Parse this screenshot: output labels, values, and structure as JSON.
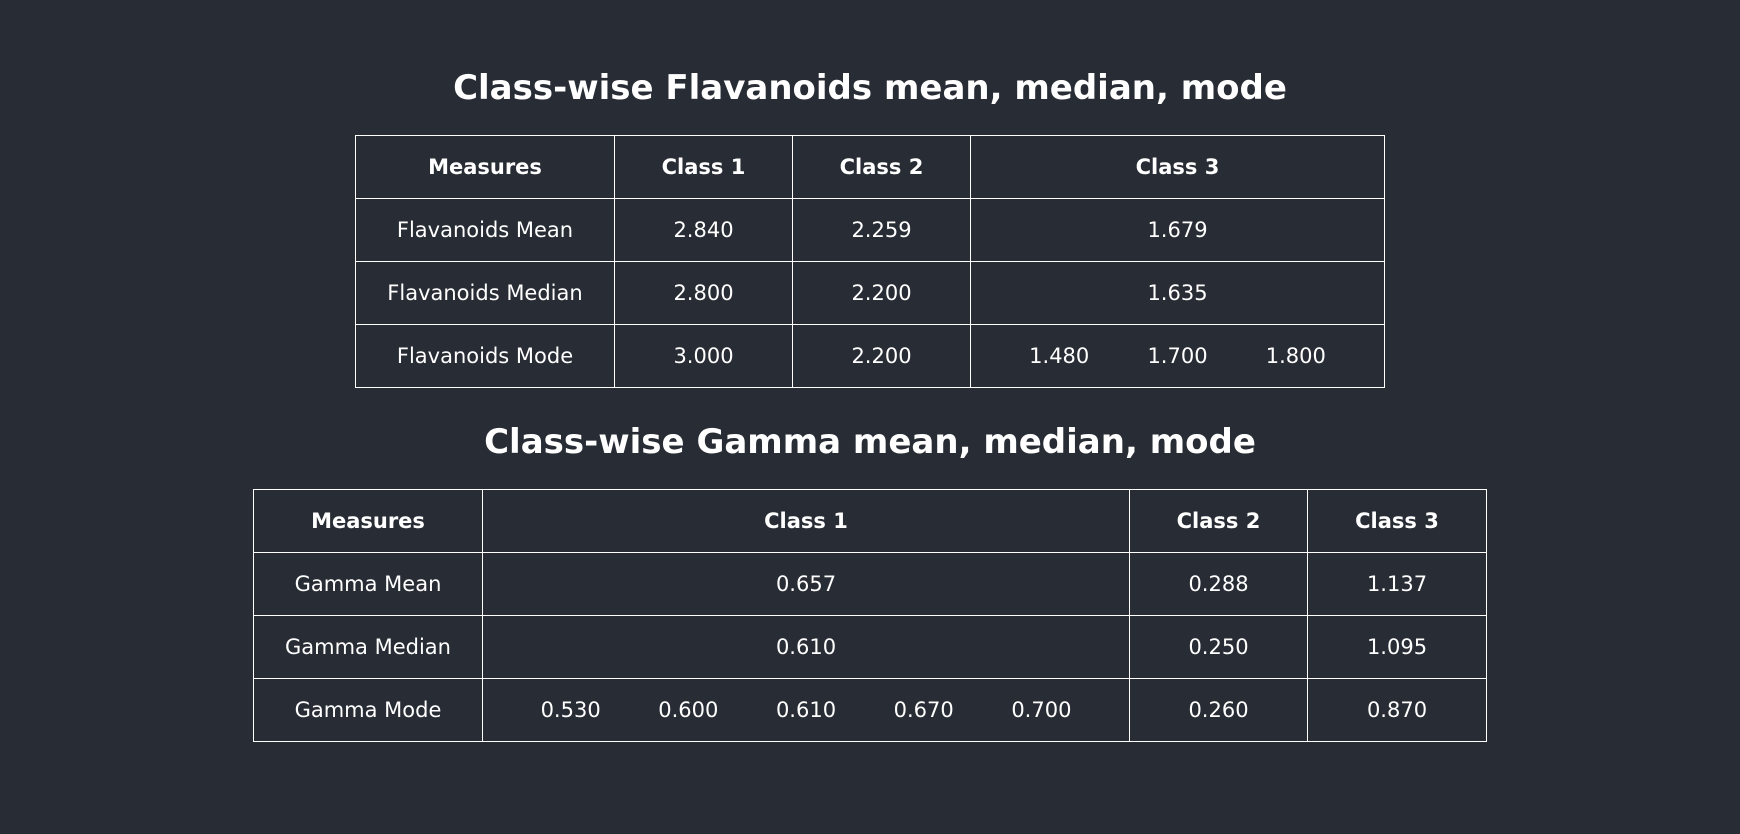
{
  "flavanoids_section": {
    "title": "Class-wise Flavanoids mean, median, mode",
    "headers": [
      "Measures",
      "Class 1",
      "Class 2",
      "Class 3"
    ],
    "rows": [
      {
        "measure": "Flavanoids Mean",
        "class1": [
          "2.840"
        ],
        "class2": [
          "2.259"
        ],
        "class3": [
          "1.679"
        ]
      },
      {
        "measure": "Flavanoids Median",
        "class1": [
          "2.800"
        ],
        "class2": [
          "2.200"
        ],
        "class3": [
          "1.635"
        ]
      },
      {
        "measure": "Flavanoids Mode",
        "class1": [
          "3.000"
        ],
        "class2": [
          "2.200"
        ],
        "class3": [
          "1.480",
          "1.700",
          "1.800"
        ]
      }
    ]
  },
  "gamma_section": {
    "title": "Class-wise Gamma mean, median, mode",
    "headers": [
      "Measures",
      "Class 1",
      "Class 2",
      "Class 3"
    ],
    "rows": [
      {
        "measure": "Gamma Mean",
        "class1": [
          "0.657"
        ],
        "class2": [
          "0.288"
        ],
        "class3": [
          "1.137"
        ]
      },
      {
        "measure": "Gamma Median",
        "class1": [
          "0.610"
        ],
        "class2": [
          "0.250"
        ],
        "class3": [
          "1.095"
        ]
      },
      {
        "measure": "Gamma Mode",
        "class1": [
          "0.530",
          "0.600",
          "0.610",
          "0.670",
          "0.700"
        ],
        "class2": [
          "0.260"
        ],
        "class3": [
          "0.870"
        ]
      }
    ]
  },
  "colors": {
    "background": "#282c34",
    "text": "#ffffff",
    "border": "#ffffff"
  }
}
